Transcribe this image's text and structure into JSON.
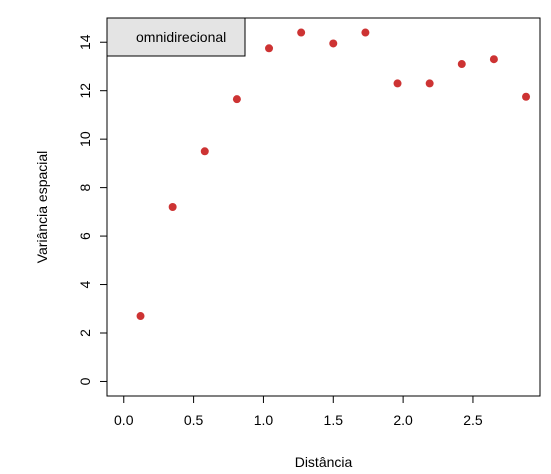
{
  "chart_data": {
    "type": "scatter",
    "title": "",
    "xlabel": "Distância",
    "ylabel": "Variância espacial",
    "xlim": [
      -0.12,
      2.98
    ],
    "ylim": [
      -0.6,
      15.0
    ],
    "x_ticks": [
      0.0,
      0.5,
      1.0,
      1.5,
      2.0,
      2.5
    ],
    "x_tick_labels": [
      "0.0",
      "0.5",
      "1.0",
      "1.5",
      "2.0",
      "2.5"
    ],
    "y_ticks": [
      0,
      2,
      4,
      6,
      8,
      10,
      12,
      14
    ],
    "y_tick_labels": [
      "0",
      "2",
      "4",
      "6",
      "8",
      "10",
      "12",
      "14"
    ],
    "grid": false,
    "legend": {
      "position": "top-left",
      "label": "omnidirecional",
      "fill": "#e4e4e4"
    },
    "point_color": "#cd3333",
    "series": [
      {
        "x": [
          0.12,
          0.35,
          0.58,
          0.81,
          1.04,
          1.27,
          1.5,
          1.73,
          1.96,
          2.19,
          2.42,
          2.65,
          2.88
        ],
        "y": [
          2.7,
          7.2,
          9.5,
          11.65,
          13.75,
          14.4,
          13.95,
          14.4,
          12.3,
          12.3,
          13.1,
          13.3,
          11.75
        ]
      }
    ]
  }
}
